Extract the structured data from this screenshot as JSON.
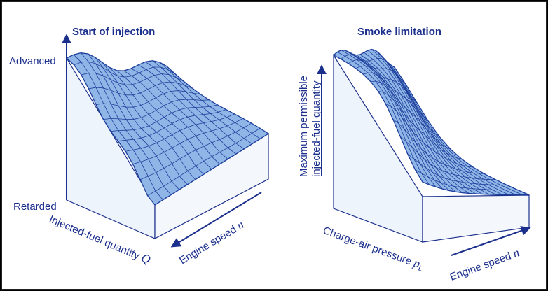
{
  "colors": {
    "ink": "#1b2f8c",
    "surface_fill": "#8fb6e6",
    "side_fill": "#e8f0fa",
    "mesh": "#1e3f9c"
  },
  "left_map": {
    "title": "Start of injection",
    "y_top_label": "Advanced",
    "y_bottom_label": "Retarded",
    "x_label": "Injected-fuel quantity",
    "x_symbol": "Q",
    "z_label": "Engine speed",
    "z_symbol": "n"
  },
  "right_map": {
    "title": "Smoke limitation",
    "y_label_line1": "Maximum permissible",
    "y_label_line2": "injected-fuel quantity",
    "x_label": "Charge-air pressure",
    "x_symbol": "p",
    "x_subscript": "L",
    "z_label": "Engine speed",
    "z_symbol": "n"
  }
}
